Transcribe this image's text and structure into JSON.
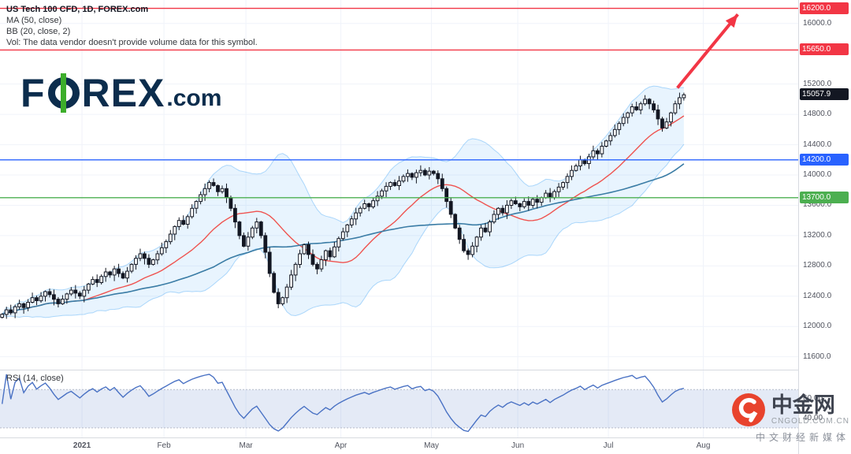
{
  "legend": {
    "title": "US Tech 100 CFD, 1D, FOREX.com",
    "ma": "MA (50, close)",
    "bb": "BB (20, close, 2)",
    "vol": "Vol: The data vendor doesn't provide volume data for this symbol."
  },
  "logo": {
    "part1": "F",
    "part2": "REX",
    "tld": ".com"
  },
  "rsi_panel": {
    "label": "RSI (14, close)"
  },
  "watermark": {
    "title": "中金网",
    "domain": "CNGOLD.COM.CN",
    "tagline": "中文财经新媒体"
  },
  "chart_data": {
    "type": "candlestick",
    "title": "US Tech 100 CFD, 1D, FOREX.com",
    "indicators": {
      "ma": "MA (50, close)",
      "bb": "BB (20, close, 2)",
      "rsi": "RSI (14, close)"
    },
    "price_range": [
      11430,
      16310
    ],
    "domain_slots": 185,
    "first_open": 12120,
    "closes": [
      12160,
      12220,
      12180,
      12260,
      12300,
      12250,
      12320,
      12380,
      12340,
      12400,
      12460,
      12420,
      12360,
      12300,
      12360,
      12430,
      12480,
      12440,
      12400,
      12480,
      12560,
      12620,
      12580,
      12660,
      12720,
      12680,
      12760,
      12700,
      12640,
      12730,
      12820,
      12900,
      12960,
      12900,
      12820,
      12880,
      12960,
      13040,
      13120,
      13220,
      13320,
      13400,
      13350,
      13450,
      13560,
      13650,
      13740,
      13820,
      13900,
      13860,
      13780,
      13820,
      13700,
      13560,
      13380,
      13200,
      13060,
      13180,
      13300,
      13380,
      13200,
      12980,
      12700,
      12450,
      12300,
      12380,
      12520,
      12680,
      12820,
      12960,
      13080,
      12950,
      12820,
      12760,
      12880,
      13000,
      12920,
      13050,
      13160,
      13250,
      13340,
      13420,
      13500,
      13560,
      13620,
      13580,
      13660,
      13720,
      13790,
      13850,
      13900,
      13860,
      13920,
      13980,
      14020,
      13970,
      14030,
      14060,
      14000,
      14050,
      14020,
      13950,
      13820,
      13650,
      13480,
      13300,
      13150,
      13000,
      12950,
      13060,
      13180,
      13300,
      13250,
      13380,
      13480,
      13560,
      13500,
      13600,
      13660,
      13620,
      13580,
      13650,
      13600,
      13680,
      13640,
      13700,
      13760,
      13700,
      13780,
      13840,
      13900,
      13980,
      14060,
      14120,
      14200,
      14150,
      14240,
      14320,
      14280,
      14380,
      14450,
      14520,
      14600,
      14680,
      14760,
      14820,
      14900,
      14860,
      14940,
      15000,
      14940,
      14860,
      14740,
      14620,
      14700,
      14820,
      14940,
      15020,
      15058
    ],
    "price_ticks": [
      16000,
      15200,
      14800,
      14400,
      14000,
      13600,
      13200,
      12800,
      12400,
      12000,
      11600
    ],
    "levels": [
      {
        "price": 16200,
        "color": "#f23645"
      },
      {
        "price": 15650,
        "color": "#f23645"
      },
      {
        "price": 14200,
        "color": "#2962ff"
      },
      {
        "price": 13700,
        "color": "#4caf50"
      }
    ],
    "last_price": 15057.9,
    "month_ticks": [
      {
        "label": "2021",
        "slot": 19,
        "strong": true
      },
      {
        "label": "Feb",
        "slot": 38
      },
      {
        "label": "Mar",
        "slot": 57
      },
      {
        "label": "Apr",
        "slot": 79
      },
      {
        "label": "May",
        "slot": 100
      },
      {
        "label": "Jun",
        "slot": 120
      },
      {
        "label": "Jul",
        "slot": 141
      },
      {
        "label": "Aug",
        "slot": 163
      }
    ],
    "rsi_range": [
      20,
      90
    ],
    "rsi_band": [
      30,
      70
    ],
    "rsi_ticks": [
      60,
      40
    ],
    "arrow": {
      "from_slot": 157,
      "from_price": 15150,
      "to_slot": 171,
      "to_price": 16120
    },
    "colors": {
      "up": "#ffffff",
      "down": "#131722",
      "candle_stroke": "#131722",
      "bb_fill": "rgba(33,150,243,0.10)",
      "bb_edge": "rgba(33,150,243,0.35)",
      "basis": "#ef5350",
      "ma50": "#3a7ca5",
      "rsi": "#4a72c4",
      "rsi_fill": "rgba(74,114,196,0.15)",
      "arrow": "#f23645",
      "last_badge": "#131722",
      "level_text": "#ffffff"
    }
  }
}
